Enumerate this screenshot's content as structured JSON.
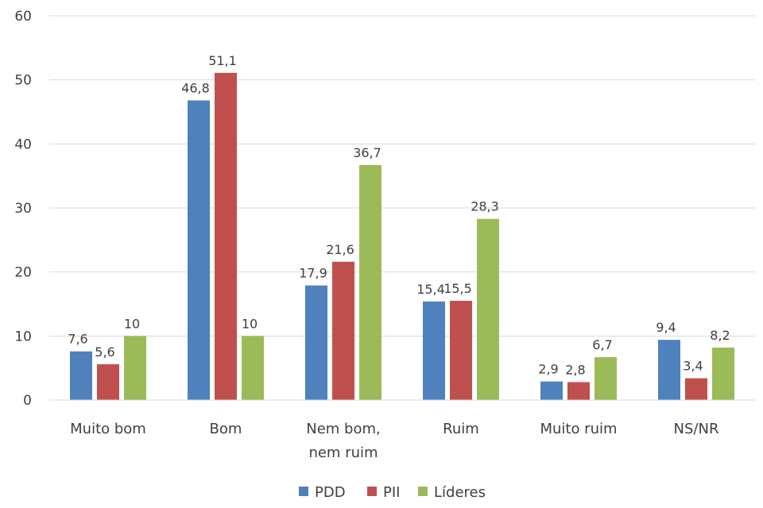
{
  "chart_data": {
    "type": "bar",
    "categories": [
      [
        "Muito bom"
      ],
      [
        "Bom"
      ],
      [
        "Nem bom,",
        "nem ruim"
      ],
      [
        "Ruim"
      ],
      [
        "Muito ruim"
      ],
      [
        "NS/NR"
      ]
    ],
    "series": [
      {
        "name": "PDD",
        "color": "#4F81BD",
        "values": [
          7.6,
          46.8,
          17.9,
          15.4,
          2.9,
          9.4
        ],
        "labels": [
          "7,6",
          "46,8",
          "17,9",
          "15,4",
          "2,9",
          "9,4"
        ]
      },
      {
        "name": "PII",
        "color": "#C0504D",
        "values": [
          5.6,
          51.1,
          21.6,
          15.5,
          2.8,
          3.4
        ],
        "labels": [
          "5,6",
          "51,1",
          "21,6",
          "15,5",
          "2,8",
          "3,4"
        ]
      },
      {
        "name": "Líderes",
        "color": "#9BBB59",
        "values": [
          10,
          10,
          36.7,
          28.3,
          6.7,
          8.2
        ],
        "labels": [
          "10",
          "10",
          "36,7",
          "28,3",
          "6,7",
          "8,2"
        ]
      }
    ],
    "ylim": [
      0,
      60
    ],
    "yticks": [
      "0",
      "10",
      "20",
      "30",
      "40",
      "50",
      "60"
    ],
    "grid": true,
    "legend_position": "bottom"
  }
}
